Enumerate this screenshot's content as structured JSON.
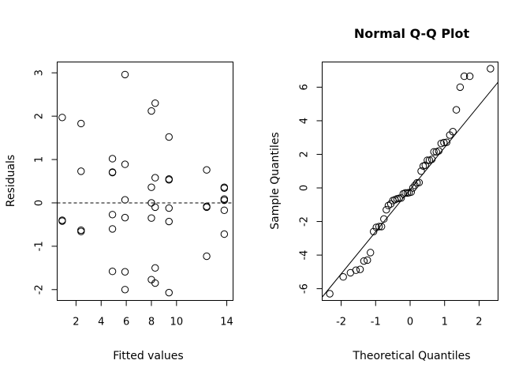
{
  "chart_data": [
    {
      "type": "scatter",
      "title": "",
      "xlabel": "Fitted values",
      "ylabel": "Residuals",
      "xlim": [
        0.5,
        14.5
      ],
      "ylim": [
        -2.25,
        3.25
      ],
      "x_ticks": [
        2,
        4,
        6,
        8,
        10,
        14
      ],
      "y_ticks": [
        -2,
        -1,
        0,
        1,
        2,
        3
      ],
      "reference_line": {
        "type": "horizontal",
        "y": 0,
        "style": "dashed"
      },
      "points": [
        {
          "x": 0.9,
          "y": 1.97
        },
        {
          "x": 0.9,
          "y": -0.4
        },
        {
          "x": 0.9,
          "y": -0.42
        },
        {
          "x": 2.4,
          "y": 1.83
        },
        {
          "x": 2.4,
          "y": 0.73
        },
        {
          "x": 2.4,
          "y": -0.63
        },
        {
          "x": 2.4,
          "y": -0.66
        },
        {
          "x": 4.9,
          "y": 1.02
        },
        {
          "x": 4.9,
          "y": 0.71
        },
        {
          "x": 4.9,
          "y": 0.7
        },
        {
          "x": 4.9,
          "y": -0.27
        },
        {
          "x": 4.9,
          "y": -0.6
        },
        {
          "x": 4.9,
          "y": -1.58
        },
        {
          "x": 5.9,
          "y": 2.96
        },
        {
          "x": 5.9,
          "y": 0.89
        },
        {
          "x": 5.9,
          "y": 0.07
        },
        {
          "x": 5.9,
          "y": -0.34
        },
        {
          "x": 5.9,
          "y": -1.59
        },
        {
          "x": 5.9,
          "y": -2.0
        },
        {
          "x": 8.0,
          "y": 2.12
        },
        {
          "x": 8.0,
          "y": 0.36
        },
        {
          "x": 8.0,
          "y": 0.0
        },
        {
          "x": 8.0,
          "y": -0.35
        },
        {
          "x": 8.0,
          "y": -1.77
        },
        {
          "x": 8.3,
          "y": 2.3
        },
        {
          "x": 8.3,
          "y": 0.58
        },
        {
          "x": 8.3,
          "y": -0.1
        },
        {
          "x": 8.3,
          "y": -1.5
        },
        {
          "x": 8.3,
          "y": -1.85
        },
        {
          "x": 9.4,
          "y": 1.52
        },
        {
          "x": 9.4,
          "y": 0.55
        },
        {
          "x": 9.4,
          "y": 0.53
        },
        {
          "x": 9.4,
          "y": -0.12
        },
        {
          "x": 9.4,
          "y": -0.43
        },
        {
          "x": 9.4,
          "y": -2.07
        },
        {
          "x": 12.4,
          "y": 0.76
        },
        {
          "x": 12.4,
          "y": -0.08
        },
        {
          "x": 12.4,
          "y": -0.1
        },
        {
          "x": 12.4,
          "y": -1.23
        },
        {
          "x": 13.8,
          "y": 0.36
        },
        {
          "x": 13.8,
          "y": 0.34
        },
        {
          "x": 13.8,
          "y": 0.09
        },
        {
          "x": 13.8,
          "y": 0.06
        },
        {
          "x": 13.8,
          "y": -0.17
        },
        {
          "x": 13.8,
          "y": -0.72
        }
      ]
    },
    {
      "type": "scatter",
      "title": "Normal Q-Q Plot",
      "xlabel": "Theoretical Quantiles",
      "ylabel": "Sample Quantiles",
      "xlim": [
        -2.55,
        2.55
      ],
      "ylim": [
        -6.7,
        7.5
      ],
      "x_ticks": [
        -2,
        -1,
        0,
        1,
        2
      ],
      "y_ticks": [
        -6,
        -4,
        -2,
        0,
        2,
        4,
        6
      ],
      "reference_line": {
        "type": "qqline",
        "points": [
          [
            -2.55,
            -6.5
          ],
          [
            2.55,
            6.3
          ]
        ]
      },
      "points": [
        {
          "x": -2.33,
          "y": -6.3
        },
        {
          "x": -1.94,
          "y": -5.3
        },
        {
          "x": -1.73,
          "y": -5.05
        },
        {
          "x": -1.57,
          "y": -4.9
        },
        {
          "x": -1.45,
          "y": -4.85
        },
        {
          "x": -1.34,
          "y": -4.35
        },
        {
          "x": -1.24,
          "y": -4.3
        },
        {
          "x": -1.15,
          "y": -3.85
        },
        {
          "x": -1.06,
          "y": -2.6
        },
        {
          "x": -0.98,
          "y": -2.35
        },
        {
          "x": -0.9,
          "y": -2.3
        },
        {
          "x": -0.83,
          "y": -2.3
        },
        {
          "x": -0.76,
          "y": -1.85
        },
        {
          "x": -0.69,
          "y": -1.3
        },
        {
          "x": -0.63,
          "y": -1.05
        },
        {
          "x": -0.56,
          "y": -0.95
        },
        {
          "x": -0.5,
          "y": -0.75
        },
        {
          "x": -0.44,
          "y": -0.7
        },
        {
          "x": -0.38,
          "y": -0.65
        },
        {
          "x": -0.32,
          "y": -0.62
        },
        {
          "x": -0.26,
          "y": -0.6
        },
        {
          "x": -0.2,
          "y": -0.35
        },
        {
          "x": -0.14,
          "y": -0.3
        },
        {
          "x": -0.08,
          "y": -0.3
        },
        {
          "x": -0.03,
          "y": -0.28
        },
        {
          "x": 0.03,
          "y": -0.25
        },
        {
          "x": 0.08,
          "y": 0.0
        },
        {
          "x": 0.14,
          "y": 0.15
        },
        {
          "x": 0.2,
          "y": 0.3
        },
        {
          "x": 0.26,
          "y": 0.32
        },
        {
          "x": 0.32,
          "y": 1.0
        },
        {
          "x": 0.38,
          "y": 1.3
        },
        {
          "x": 0.44,
          "y": 1.35
        },
        {
          "x": 0.5,
          "y": 1.65
        },
        {
          "x": 0.56,
          "y": 1.65
        },
        {
          "x": 0.63,
          "y": 1.7
        },
        {
          "x": 0.69,
          "y": 2.15
        },
        {
          "x": 0.76,
          "y": 2.15
        },
        {
          "x": 0.83,
          "y": 2.2
        },
        {
          "x": 0.9,
          "y": 2.65
        },
        {
          "x": 0.98,
          "y": 2.7
        },
        {
          "x": 1.06,
          "y": 2.72
        },
        {
          "x": 1.15,
          "y": 3.15
        },
        {
          "x": 1.24,
          "y": 3.35
        },
        {
          "x": 1.34,
          "y": 4.65
        },
        {
          "x": 1.45,
          "y": 6.0
        },
        {
          "x": 1.57,
          "y": 6.65
        },
        {
          "x": 1.73,
          "y": 6.65
        },
        {
          "x": 2.33,
          "y": 7.1
        }
      ]
    }
  ]
}
